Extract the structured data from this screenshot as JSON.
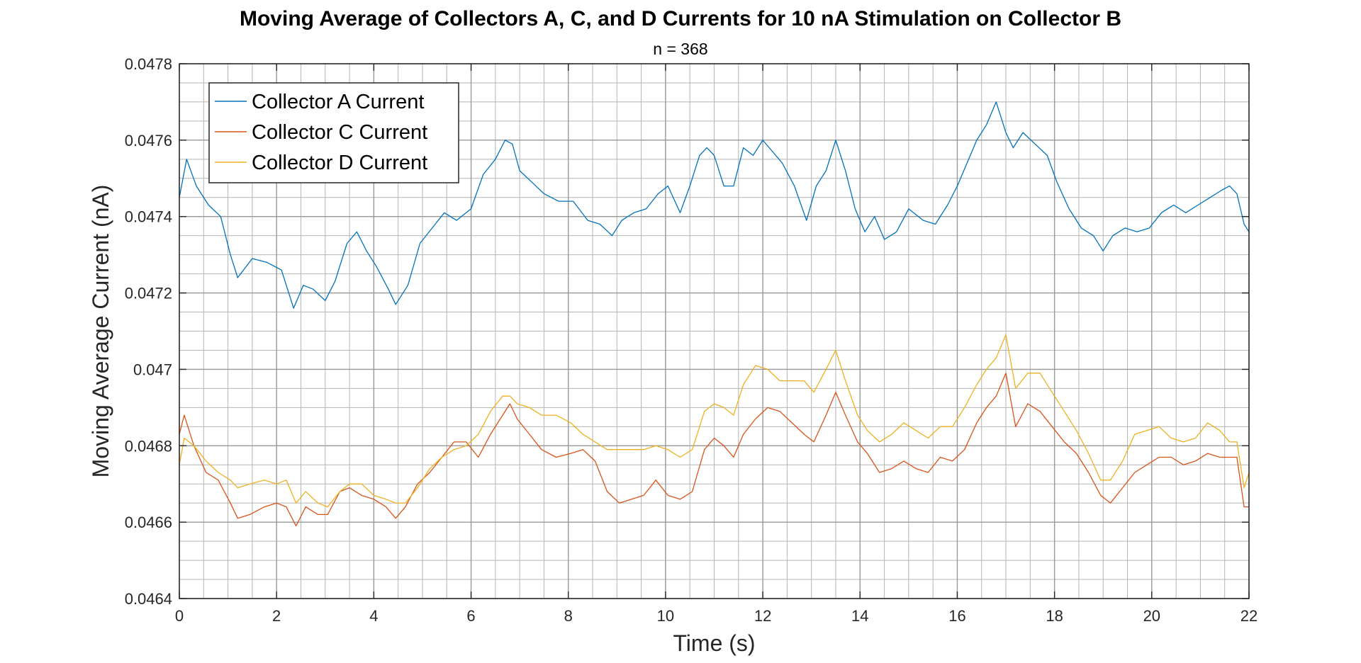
{
  "chart_data": {
    "type": "line",
    "title": "Moving Average of Collectors A, C, and D Currents for 10 nA Stimulation on Collector B",
    "subtitle": "n = 368",
    "xlabel": "Time (s)",
    "ylabel": "Moving Average Current (nA)",
    "xlim": [
      0,
      22
    ],
    "ylim": [
      0.0464,
      0.0478
    ],
    "xticks": [
      0,
      2,
      4,
      6,
      8,
      10,
      12,
      14,
      16,
      18,
      20,
      22
    ],
    "xtick_labels": [
      "0",
      "2",
      "4",
      "6",
      "8",
      "10",
      "12",
      "14",
      "16",
      "18",
      "20",
      "22"
    ],
    "yticks": [
      0.0464,
      0.0466,
      0.0468,
      0.047,
      0.0472,
      0.0474,
      0.0476,
      0.0478
    ],
    "ytick_labels": [
      "0.0464",
      "0.0466",
      "0.0468",
      "0.047",
      "0.0472",
      "0.0474",
      "0.0476",
      "0.0478"
    ],
    "grid": true,
    "minor_grid": true,
    "legend_position": "top-left",
    "series": [
      {
        "name": "Collector A Current",
        "color": "#0072BD",
        "x": [
          0,
          0.15,
          0.35,
          0.6,
          0.85,
          1.05,
          1.2,
          1.5,
          1.8,
          2.1,
          2.35,
          2.55,
          2.75,
          3.0,
          3.2,
          3.45,
          3.65,
          3.85,
          4.05,
          4.3,
          4.45,
          4.7,
          4.95,
          5.2,
          5.45,
          5.7,
          6.0,
          6.25,
          6.5,
          6.7,
          6.85,
          7.0,
          7.25,
          7.5,
          7.8,
          8.1,
          8.4,
          8.65,
          8.9,
          9.1,
          9.35,
          9.6,
          9.85,
          10.05,
          10.3,
          10.5,
          10.7,
          10.85,
          11.0,
          11.2,
          11.4,
          11.6,
          11.8,
          12.0,
          12.2,
          12.4,
          12.65,
          12.9,
          13.1,
          13.3,
          13.5,
          13.7,
          13.9,
          14.1,
          14.3,
          14.5,
          14.75,
          15.0,
          15.3,
          15.55,
          15.8,
          16.0,
          16.2,
          16.4,
          16.6,
          16.8,
          17.0,
          17.15,
          17.35,
          17.6,
          17.85,
          18.05,
          18.3,
          18.55,
          18.8,
          19.0,
          19.2,
          19.45,
          19.7,
          19.95,
          20.2,
          20.45,
          20.7,
          20.95,
          21.2,
          21.45,
          21.6,
          21.75,
          21.9,
          22.0
        ],
        "y": [
          0.04745,
          0.04755,
          0.04748,
          0.04743,
          0.0474,
          0.0473,
          0.04724,
          0.04729,
          0.04728,
          0.04726,
          0.04716,
          0.04722,
          0.04721,
          0.04718,
          0.04723,
          0.04733,
          0.04736,
          0.04731,
          0.04727,
          0.04721,
          0.04717,
          0.04722,
          0.04733,
          0.04737,
          0.04741,
          0.04739,
          0.04742,
          0.04751,
          0.04755,
          0.0476,
          0.04759,
          0.04752,
          0.04749,
          0.04746,
          0.04744,
          0.04744,
          0.04739,
          0.04738,
          0.04735,
          0.04739,
          0.04741,
          0.04742,
          0.04746,
          0.04748,
          0.04741,
          0.04748,
          0.04756,
          0.04758,
          0.04756,
          0.04748,
          0.04748,
          0.04758,
          0.04756,
          0.0476,
          0.04757,
          0.04754,
          0.04748,
          0.04739,
          0.04748,
          0.04752,
          0.0476,
          0.04752,
          0.04742,
          0.04736,
          0.0474,
          0.04734,
          0.04736,
          0.04742,
          0.04739,
          0.04738,
          0.04743,
          0.04748,
          0.04754,
          0.0476,
          0.04764,
          0.0477,
          0.04762,
          0.04758,
          0.04762,
          0.04759,
          0.04756,
          0.04749,
          0.04742,
          0.04737,
          0.04735,
          0.04731,
          0.04735,
          0.04737,
          0.04736,
          0.04737,
          0.04741,
          0.04743,
          0.04741,
          0.04743,
          0.04745,
          0.04747,
          0.04748,
          0.04746,
          0.04738,
          0.04736
        ]
      },
      {
        "name": "Collector C Current",
        "color": "#D95319",
        "x": [
          0,
          0.1,
          0.3,
          0.55,
          0.8,
          1.05,
          1.2,
          1.45,
          1.75,
          2.0,
          2.2,
          2.4,
          2.6,
          2.85,
          3.05,
          3.3,
          3.5,
          3.75,
          4.0,
          4.25,
          4.45,
          4.65,
          4.9,
          5.15,
          5.4,
          5.65,
          5.9,
          6.15,
          6.4,
          6.65,
          6.8,
          6.95,
          7.2,
          7.45,
          7.75,
          8.05,
          8.3,
          8.55,
          8.8,
          9.05,
          9.3,
          9.55,
          9.8,
          10.05,
          10.3,
          10.55,
          10.8,
          11.0,
          11.2,
          11.4,
          11.6,
          11.85,
          12.1,
          12.35,
          12.6,
          12.85,
          13.05,
          13.3,
          13.5,
          13.7,
          13.95,
          14.15,
          14.4,
          14.65,
          14.9,
          15.15,
          15.4,
          15.65,
          15.9,
          16.15,
          16.4,
          16.6,
          16.8,
          17.0,
          17.2,
          17.45,
          17.7,
          17.95,
          18.2,
          18.45,
          18.7,
          18.95,
          19.15,
          19.4,
          19.65,
          19.9,
          20.15,
          20.4,
          20.65,
          20.9,
          21.15,
          21.4,
          21.6,
          21.75,
          21.9,
          22.0
        ],
        "y": [
          0.04683,
          0.04688,
          0.0468,
          0.04673,
          0.04671,
          0.04665,
          0.04661,
          0.04662,
          0.04664,
          0.04665,
          0.04664,
          0.04659,
          0.04664,
          0.04662,
          0.04662,
          0.04668,
          0.04669,
          0.04667,
          0.04666,
          0.04664,
          0.04661,
          0.04664,
          0.0467,
          0.04673,
          0.04677,
          0.04681,
          0.04681,
          0.04677,
          0.04683,
          0.04688,
          0.04691,
          0.04687,
          0.04683,
          0.04679,
          0.04677,
          0.04678,
          0.04679,
          0.04676,
          0.04668,
          0.04665,
          0.04666,
          0.04667,
          0.04671,
          0.04667,
          0.04666,
          0.04668,
          0.04679,
          0.04682,
          0.0468,
          0.04677,
          0.04683,
          0.04687,
          0.0469,
          0.04689,
          0.04686,
          0.04683,
          0.04681,
          0.04688,
          0.04694,
          0.04688,
          0.04681,
          0.04678,
          0.04673,
          0.04674,
          0.04676,
          0.04674,
          0.04673,
          0.04677,
          0.04676,
          0.04679,
          0.04686,
          0.0469,
          0.04693,
          0.04699,
          0.04685,
          0.04691,
          0.04689,
          0.04685,
          0.04681,
          0.04678,
          0.04673,
          0.04667,
          0.04665,
          0.04669,
          0.04673,
          0.04675,
          0.04677,
          0.04677,
          0.04675,
          0.04676,
          0.04678,
          0.04677,
          0.04677,
          0.04677,
          0.04664,
          0.04664
        ]
      },
      {
        "name": "Collector D Current",
        "color": "#EDB120",
        "x": [
          0,
          0.1,
          0.3,
          0.55,
          0.8,
          1.05,
          1.2,
          1.45,
          1.75,
          2.0,
          2.2,
          2.4,
          2.6,
          2.85,
          3.05,
          3.3,
          3.5,
          3.75,
          4.0,
          4.25,
          4.45,
          4.65,
          4.9,
          5.15,
          5.4,
          5.65,
          5.9,
          6.15,
          6.4,
          6.65,
          6.8,
          6.95,
          7.2,
          7.45,
          7.75,
          8.05,
          8.3,
          8.55,
          8.8,
          9.05,
          9.3,
          9.55,
          9.8,
          10.05,
          10.3,
          10.55,
          10.8,
          11.0,
          11.2,
          11.4,
          11.6,
          11.85,
          12.1,
          12.35,
          12.6,
          12.85,
          13.05,
          13.3,
          13.5,
          13.7,
          13.95,
          14.15,
          14.4,
          14.65,
          14.9,
          15.15,
          15.4,
          15.65,
          15.9,
          16.15,
          16.4,
          16.6,
          16.8,
          17.0,
          17.2,
          17.45,
          17.7,
          17.95,
          18.2,
          18.45,
          18.7,
          18.95,
          19.15,
          19.4,
          19.65,
          19.9,
          20.15,
          20.4,
          20.65,
          20.9,
          21.15,
          21.4,
          21.6,
          21.75,
          21.9,
          22.0
        ],
        "y": [
          0.04675,
          0.04682,
          0.0468,
          0.04676,
          0.04673,
          0.04671,
          0.04669,
          0.0467,
          0.04671,
          0.0467,
          0.04671,
          0.04665,
          0.04668,
          0.04665,
          0.04664,
          0.04668,
          0.0467,
          0.0467,
          0.04667,
          0.04666,
          0.04665,
          0.04665,
          0.04669,
          0.04674,
          0.04677,
          0.04679,
          0.0468,
          0.04683,
          0.04689,
          0.04693,
          0.04693,
          0.04691,
          0.0469,
          0.04688,
          0.04688,
          0.04686,
          0.04683,
          0.04681,
          0.04679,
          0.04679,
          0.04679,
          0.04679,
          0.0468,
          0.04679,
          0.04677,
          0.04679,
          0.04689,
          0.04691,
          0.0469,
          0.04688,
          0.04696,
          0.04701,
          0.047,
          0.04697,
          0.04697,
          0.04697,
          0.04694,
          0.047,
          0.04705,
          0.04697,
          0.04688,
          0.04684,
          0.04681,
          0.04683,
          0.04686,
          0.04684,
          0.04682,
          0.04685,
          0.04685,
          0.0469,
          0.04696,
          0.047,
          0.04703,
          0.04709,
          0.04695,
          0.04699,
          0.04699,
          0.04694,
          0.04689,
          0.04684,
          0.04678,
          0.04671,
          0.04671,
          0.04676,
          0.04683,
          0.04684,
          0.04685,
          0.04682,
          0.04681,
          0.04682,
          0.04686,
          0.04684,
          0.04681,
          0.04681,
          0.04669,
          0.04673
        ]
      }
    ]
  }
}
